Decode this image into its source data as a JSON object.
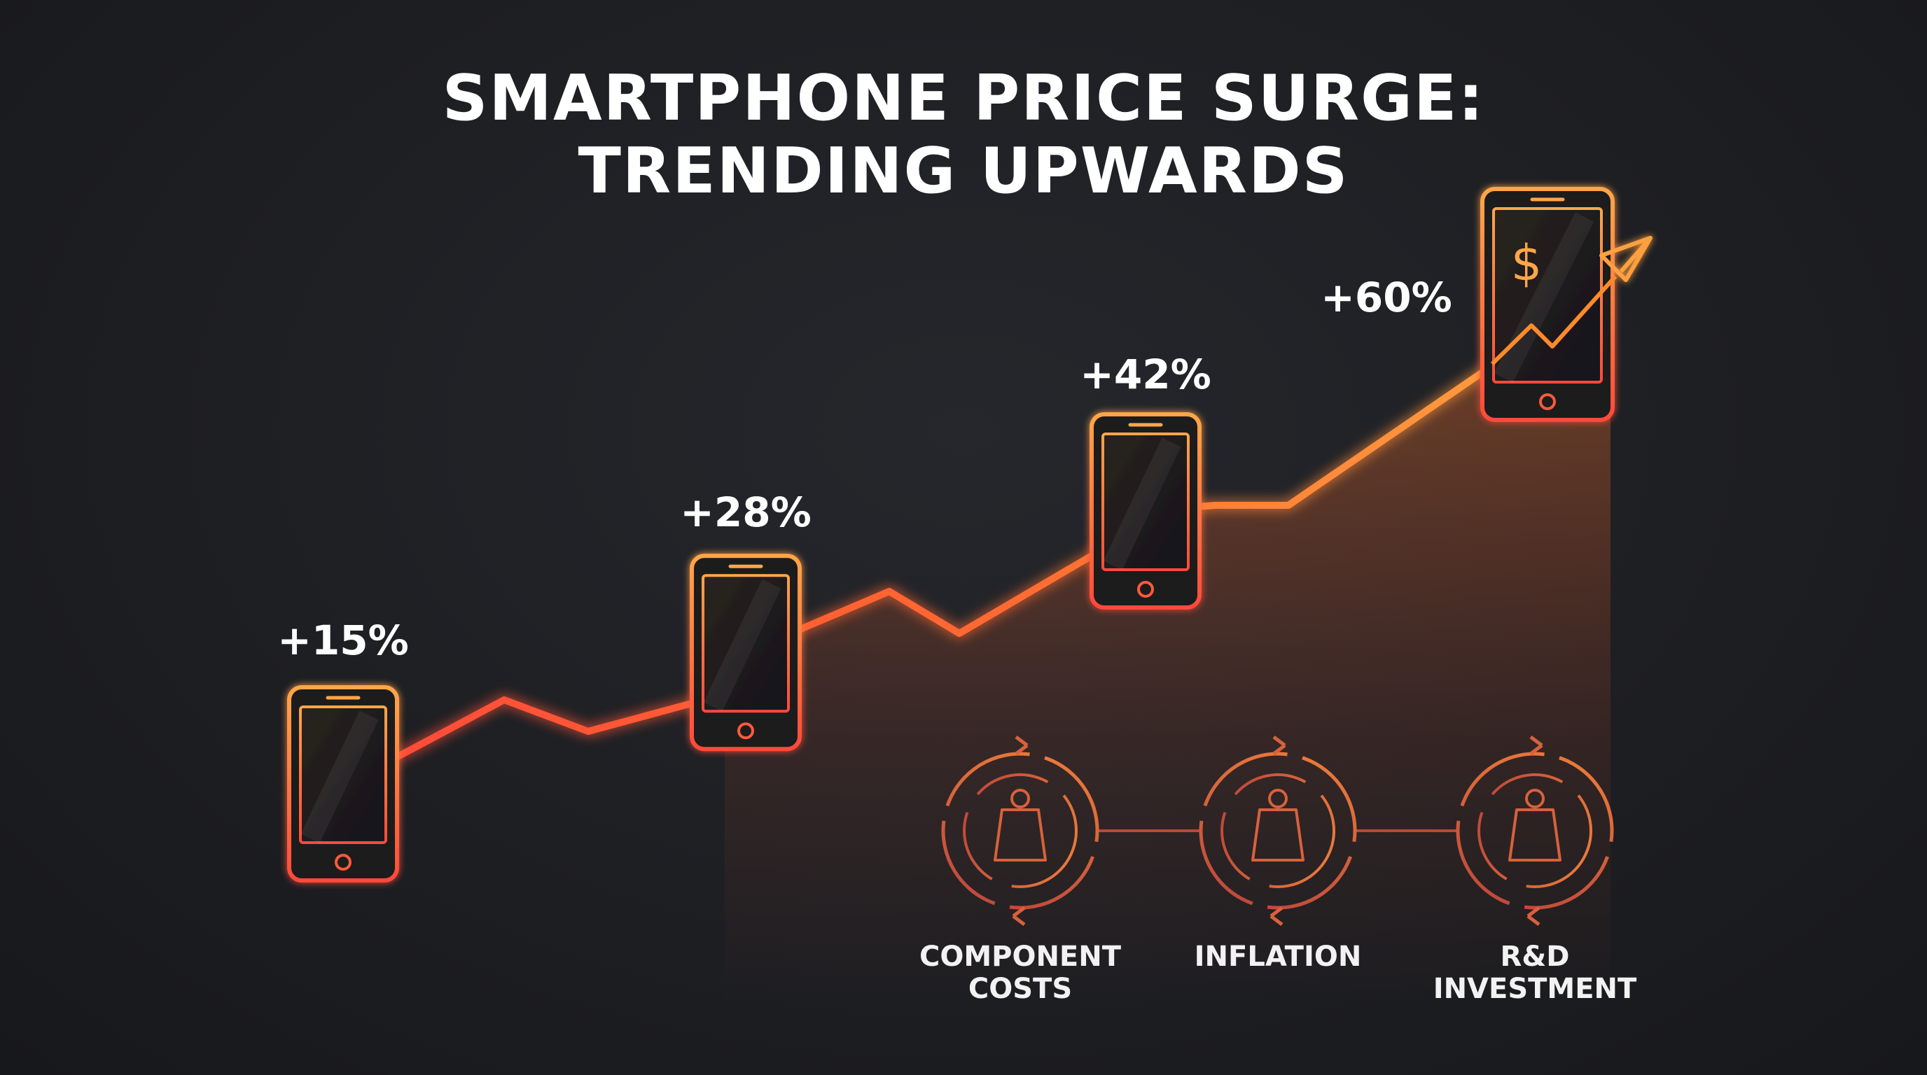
{
  "title_line1": "SMARTPHONE PRICE SURGE:",
  "title_line2": "TRENDING UPWARDS",
  "chart_data": {
    "type": "line",
    "title": "SMARTPHONE PRICE SURGE: TRENDING UPWARDS",
    "xlabel": "",
    "ylabel": "",
    "ylim": [
      0,
      70
    ],
    "grid": false,
    "legend": "none",
    "unit": "%",
    "points": [
      {
        "label": "+15%",
        "value": 15
      },
      {
        "label": "+28%",
        "value": 28
      },
      {
        "label": "+42%",
        "value": 42
      },
      {
        "label": "+60%",
        "value": 60
      }
    ],
    "line_color": "#ff8a2a",
    "line_color_start": "#ff4a3a",
    "fill_color": "#ff7a2a"
  },
  "factors": [
    {
      "label_lines": [
        "COMPONENT",
        "COSTS"
      ],
      "icon": "weight-cycle-icon"
    },
    {
      "label_lines": [
        "INFLATION"
      ],
      "icon": "weight-cycle-icon"
    },
    {
      "label_lines": [
        "R&D",
        "INVESTMENT"
      ],
      "icon": "weight-cycle-icon"
    }
  ],
  "colors": {
    "background": "#1d1e22",
    "accent_orange": "#ff9a3c",
    "accent_red": "#ff4d3d",
    "icon_dim": "#c9553f"
  }
}
